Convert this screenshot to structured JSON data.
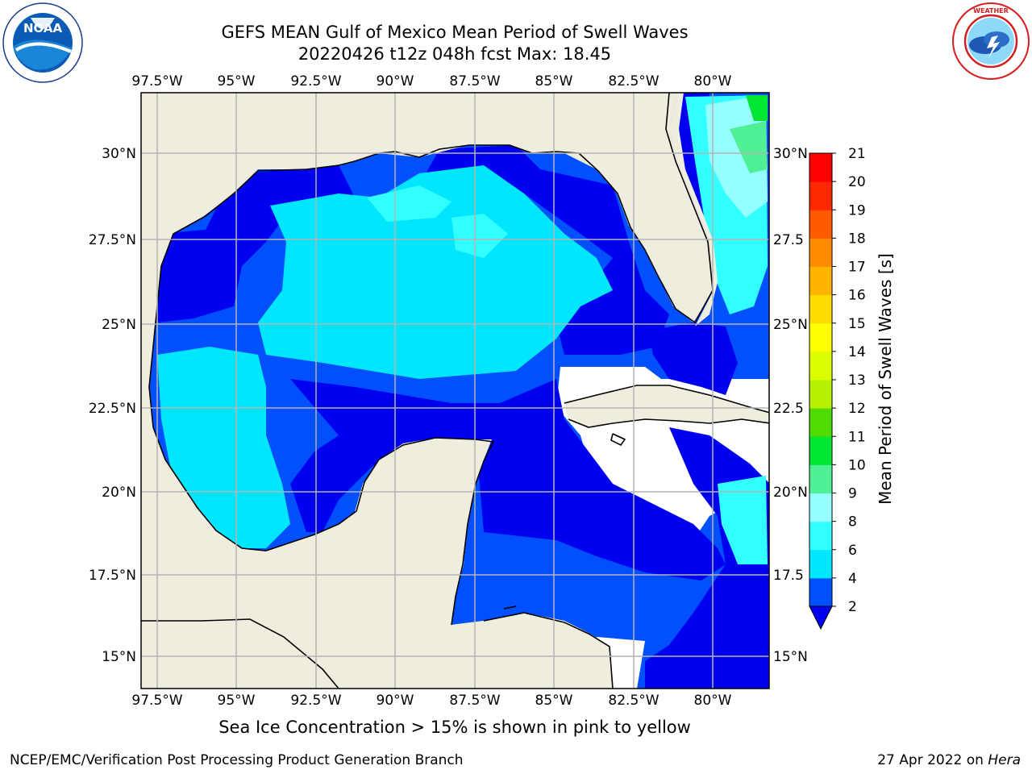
{
  "header": {
    "title_line1": "GEFS MEAN Gulf of Mexico Mean Period of Swell Waves",
    "title_line2": "20220426 t12z 048h fcst   Max: 18.45"
  },
  "logos": {
    "left": {
      "icon": "noaa-logo",
      "text": "NOAA",
      "ring_text": "NATIONAL OCEANIC AND ATMOSPHERIC ADMINISTRATION · U.S. DEPARTMENT OF COMMERCE"
    },
    "right": {
      "icon": "nws-logo",
      "ring_text": "NATIONAL WEATHER SERVICE"
    }
  },
  "map": {
    "lon_labels": [
      "97.5°W",
      "95°W",
      "92.5°W",
      "90°W",
      "87.5°W",
      "85°W",
      "82.5°W",
      "80°W"
    ],
    "lat_labels_left": [
      "30°N",
      "27.5°N",
      "25°N",
      "22.5°N",
      "20°N",
      "17.5°N",
      "15°N"
    ],
    "lat_labels_right": [
      "30°N",
      "27.5",
      "25°N",
      "22.5",
      "20°N",
      "17.5",
      "15°N"
    ],
    "colors": {
      "land": "#efedde",
      "ocean_none": "#ffffff",
      "grid": "#b4b4b4",
      "coast": "#000000"
    }
  },
  "colorbar": {
    "label": "Mean Period of Swell Waves [s]",
    "ticks": [
      "2",
      "4",
      "6",
      "8",
      "9",
      "10",
      "11",
      "12",
      "13",
      "14",
      "15",
      "16",
      "17",
      "18",
      "19",
      "20",
      "21"
    ],
    "colors": [
      "#0050ff",
      "#00e6ff",
      "#32ffff",
      "#96ffff",
      "#50f096",
      "#00e632",
      "#50dc00",
      "#b4f000",
      "#dcff00",
      "#ffff00",
      "#ffdc00",
      "#ffb400",
      "#ff8c00",
      "#ff5a00",
      "#ff2800",
      "#ff0000"
    ],
    "underflow_color": "#0000f0"
  },
  "footnote": "Sea Ice Concentration > 15% is shown in pink to yellow",
  "credits": {
    "left": "NCEP/EMC/Verification Post Processing Product Generation Branch",
    "right_date": "27 Apr 2022 on ",
    "right_host": "Hera"
  }
}
